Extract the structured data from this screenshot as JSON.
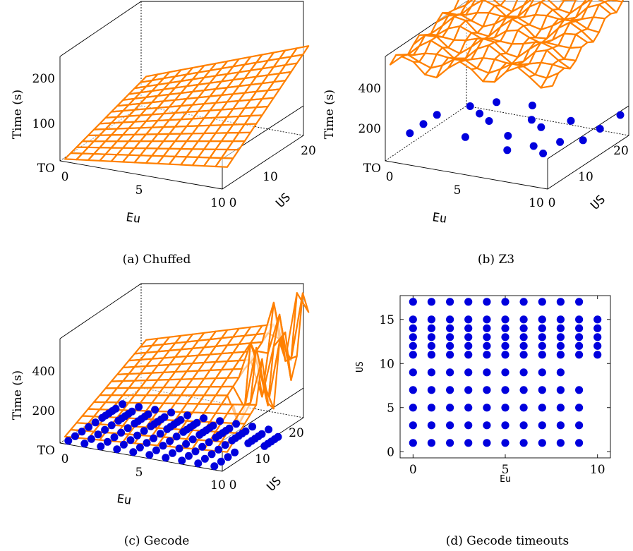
{
  "colors": {
    "surface": "#ff8000",
    "marker": "#0000dd",
    "axis": "#000000"
  },
  "panels": [
    {
      "caption": "(a) Chuffed",
      "type": "surface3d",
      "xlabel": "Eu",
      "ylabel": "US",
      "zlabel": "Time (s)",
      "xticks": [
        "0",
        "5",
        "10"
      ],
      "yticks": [
        "0",
        "10",
        "20"
      ],
      "zticks": [
        "TO",
        "100",
        "200"
      ]
    },
    {
      "caption": "(b) Z3",
      "type": "surface3d",
      "xlabel": "Eu",
      "ylabel": "US",
      "zlabel": "Time (s)",
      "xticks": [
        "0",
        "5",
        "10"
      ],
      "yticks": [
        "0",
        "10",
        "20"
      ],
      "zticks": [
        "TO",
        "200",
        "400"
      ]
    },
    {
      "caption": "(c) Gecode",
      "type": "surface3d",
      "xlabel": "Eu",
      "ylabel": "US",
      "zlabel": "Time (s)",
      "xticks": [
        "0",
        "5",
        "10"
      ],
      "yticks": [
        "0",
        "10",
        "20"
      ],
      "zticks": [
        "TO",
        "200",
        "400"
      ]
    },
    {
      "caption": "(d) Gecode timeouts",
      "type": "scatter",
      "xlabel": "Eu",
      "ylabel": "US",
      "xticks": [
        "0",
        "5",
        "10"
      ],
      "yticks": [
        "0",
        "5",
        "10",
        "15"
      ]
    }
  ],
  "chart_data": [
    {
      "type": "surface3d",
      "title": "(a) Chuffed",
      "xlabel": "Eu",
      "ylabel": "US",
      "zlabel": "Time (s)",
      "xlim": [
        0,
        10
      ],
      "ylim": [
        0,
        24
      ],
      "zlim": [
        0,
        250
      ],
      "z_at_corners": {
        "eu0_us0": 5,
        "eu10_us0": 60,
        "eu0_us24": 80,
        "eu10_us24": 240
      },
      "timeout_points": []
    },
    {
      "type": "surface3d",
      "title": "(b) Z3",
      "xlabel": "Eu",
      "ylabel": "US",
      "zlabel": "Time (s)",
      "xlim": [
        0,
        10
      ],
      "ylim": [
        0,
        24
      ],
      "zlim": [
        0,
        550
      ],
      "z_at_corners": {
        "eu0_us0": 300,
        "eu10_us0": 340,
        "eu0_us24": 380,
        "eu10_us24": 460
      },
      "timeout_points": [
        {
          "eu": 1,
          "us": 1
        },
        {
          "eu": 1,
          "us": 5
        },
        {
          "eu": 1,
          "us": 9
        },
        {
          "eu": 2,
          "us": 14
        },
        {
          "eu": 3,
          "us": 12
        },
        {
          "eu": 3,
          "us": 17
        },
        {
          "eu": 4,
          "us": 3
        },
        {
          "eu": 4,
          "us": 10
        },
        {
          "eu": 5,
          "us": 18
        },
        {
          "eu": 6,
          "us": 6
        },
        {
          "eu": 6,
          "us": 13
        },
        {
          "eu": 7,
          "us": 1
        },
        {
          "eu": 7,
          "us": 11
        },
        {
          "eu": 8,
          "us": 15
        },
        {
          "eu": 8,
          "us": 4
        },
        {
          "eu": 9,
          "us": 7
        },
        {
          "eu": 9,
          "us": 2
        },
        {
          "eu": 10,
          "us": 9
        },
        {
          "eu": 10,
          "us": 14
        },
        {
          "eu": 10,
          "us": 20
        }
      ]
    },
    {
      "type": "surface3d",
      "title": "(c) Gecode",
      "xlabel": "Eu",
      "ylabel": "US",
      "zlabel": "Time (s)",
      "xlim": [
        0,
        10
      ],
      "ylim": [
        0,
        24
      ],
      "zlim": [
        0,
        550
      ],
      "z_at_corners": {
        "eu0_us0": 20,
        "eu10_us0": 60,
        "eu0_us24": 150,
        "eu10_us24": 300
      },
      "timeout_points_grid": {
        "eu": [
          0,
          1,
          2,
          3,
          4,
          5,
          6,
          7,
          8,
          9,
          10
        ],
        "us": [
          1,
          3,
          5,
          7,
          9,
          11,
          12,
          13,
          14,
          15,
          17
        ]
      }
    },
    {
      "type": "scatter",
      "title": "(d) Gecode timeouts",
      "xlabel": "Eu",
      "ylabel": "US",
      "xlim": [
        -0.7,
        10.7
      ],
      "ylim": [
        -0.7,
        17.7
      ],
      "grid": false,
      "points": [
        [
          0,
          1
        ],
        [
          1,
          1
        ],
        [
          2,
          1
        ],
        [
          3,
          1
        ],
        [
          4,
          1
        ],
        [
          5,
          1
        ],
        [
          6,
          1
        ],
        [
          7,
          1
        ],
        [
          8,
          1
        ],
        [
          9,
          1
        ],
        [
          0,
          3
        ],
        [
          1,
          3
        ],
        [
          2,
          3
        ],
        [
          3,
          3
        ],
        [
          4,
          3
        ],
        [
          5,
          3
        ],
        [
          6,
          3
        ],
        [
          7,
          3
        ],
        [
          8,
          3
        ],
        [
          9,
          3
        ],
        [
          0,
          5
        ],
        [
          1,
          5
        ],
        [
          2,
          5
        ],
        [
          3,
          5
        ],
        [
          4,
          5
        ],
        [
          5,
          5
        ],
        [
          6,
          5
        ],
        [
          7,
          5
        ],
        [
          8,
          5
        ],
        [
          9,
          5
        ],
        [
          0,
          7
        ],
        [
          1,
          7
        ],
        [
          2,
          7
        ],
        [
          3,
          7
        ],
        [
          4,
          7
        ],
        [
          5,
          7
        ],
        [
          6,
          7
        ],
        [
          7,
          7
        ],
        [
          8,
          7
        ],
        [
          9,
          7
        ],
        [
          0,
          9
        ],
        [
          1,
          9
        ],
        [
          2,
          9
        ],
        [
          3,
          9
        ],
        [
          4,
          9
        ],
        [
          5,
          9
        ],
        [
          6,
          9
        ],
        [
          7,
          9
        ],
        [
          8,
          9
        ],
        [
          0,
          11
        ],
        [
          1,
          11
        ],
        [
          2,
          11
        ],
        [
          3,
          11
        ],
        [
          4,
          11
        ],
        [
          5,
          11
        ],
        [
          6,
          11
        ],
        [
          7,
          11
        ],
        [
          8,
          11
        ],
        [
          9,
          11
        ],
        [
          10,
          11
        ],
        [
          0,
          12
        ],
        [
          1,
          12
        ],
        [
          2,
          12
        ],
        [
          3,
          12
        ],
        [
          4,
          12
        ],
        [
          5,
          12
        ],
        [
          6,
          12
        ],
        [
          7,
          12
        ],
        [
          8,
          12
        ],
        [
          9,
          12
        ],
        [
          10,
          12
        ],
        [
          0,
          13
        ],
        [
          1,
          13
        ],
        [
          2,
          13
        ],
        [
          3,
          13
        ],
        [
          4,
          13
        ],
        [
          5,
          13
        ],
        [
          6,
          13
        ],
        [
          7,
          13
        ],
        [
          8,
          13
        ],
        [
          9,
          13
        ],
        [
          10,
          13
        ],
        [
          0,
          14
        ],
        [
          1,
          14
        ],
        [
          2,
          14
        ],
        [
          3,
          14
        ],
        [
          4,
          14
        ],
        [
          5,
          14
        ],
        [
          6,
          14
        ],
        [
          7,
          14
        ],
        [
          8,
          14
        ],
        [
          9,
          14
        ],
        [
          10,
          14
        ],
        [
          0,
          15
        ],
        [
          1,
          15
        ],
        [
          2,
          15
        ],
        [
          3,
          15
        ],
        [
          4,
          15
        ],
        [
          5,
          15
        ],
        [
          6,
          15
        ],
        [
          7,
          15
        ],
        [
          8,
          15
        ],
        [
          9,
          15
        ],
        [
          10,
          15
        ],
        [
          0,
          17
        ],
        [
          1,
          17
        ],
        [
          2,
          17
        ],
        [
          3,
          17
        ],
        [
          4,
          17
        ],
        [
          5,
          17
        ],
        [
          6,
          17
        ],
        [
          7,
          17
        ],
        [
          8,
          17
        ],
        [
          9,
          17
        ]
      ]
    }
  ]
}
